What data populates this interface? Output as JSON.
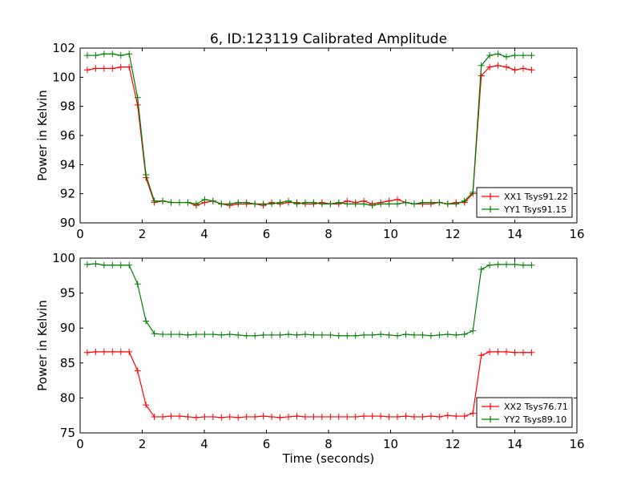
{
  "chart_data": [
    {
      "type": "line",
      "title": "6, ID:123119 Calibrated Amplitude",
      "xlabel": "",
      "ylabel": "Power in Kelvin",
      "xlim": [
        0,
        16
      ],
      "ylim": [
        90,
        102
      ],
      "xticks": [
        "0",
        "2",
        "4",
        "6",
        "8",
        "10",
        "12",
        "14",
        "16"
      ],
      "yticks": [
        "90",
        "92",
        "94",
        "96",
        "98",
        "100",
        "102"
      ],
      "legend_position": "bottom-right",
      "x_start": 0.23,
      "x_step": 0.27,
      "series": [
        {
          "name": "XX1 Tsys91.22",
          "color": "#ff0000",
          "values": [
            100.5,
            100.6,
            100.6,
            100.6,
            100.7,
            100.7,
            98.1,
            93.1,
            91.4,
            91.5,
            91.4,
            91.4,
            91.4,
            91.2,
            91.4,
            91.5,
            91.3,
            91.2,
            91.3,
            91.3,
            91.3,
            91.2,
            91.4,
            91.3,
            91.4,
            91.4,
            91.3,
            91.3,
            91.4,
            91.3,
            91.3,
            91.5,
            91.4,
            91.5,
            91.3,
            91.4,
            91.5,
            91.6,
            91.4,
            91.3,
            91.3,
            91.3,
            91.4,
            91.3,
            91.4,
            91.4,
            92.0,
            100.1,
            100.7,
            100.8,
            100.7,
            100.5,
            100.6,
            100.5
          ]
        },
        {
          "name": "YY1 Tsys91.15",
          "color": "#008000",
          "values": [
            101.5,
            101.5,
            101.6,
            101.6,
            101.5,
            101.6,
            98.6,
            93.3,
            91.5,
            91.5,
            91.4,
            91.4,
            91.4,
            91.3,
            91.6,
            91.5,
            91.3,
            91.3,
            91.4,
            91.4,
            91.3,
            91.3,
            91.3,
            91.4,
            91.5,
            91.3,
            91.4,
            91.4,
            91.3,
            91.3,
            91.4,
            91.3,
            91.3,
            91.3,
            91.2,
            91.3,
            91.3,
            91.3,
            91.4,
            91.3,
            91.4,
            91.4,
            91.4,
            91.3,
            91.3,
            91.5,
            92.1,
            100.8,
            101.5,
            101.6,
            101.4,
            101.5,
            101.5,
            101.5
          ]
        }
      ]
    },
    {
      "type": "line",
      "title": "",
      "xlabel": "Time (seconds)",
      "ylabel": "Power in Kelvin",
      "xlim": [
        0,
        16
      ],
      "ylim": [
        75,
        100
      ],
      "xticks": [
        "0",
        "2",
        "4",
        "6",
        "8",
        "10",
        "12",
        "14",
        "16"
      ],
      "yticks": [
        "75",
        "80",
        "85",
        "90",
        "95",
        "100"
      ],
      "legend_position": "bottom-right",
      "x_start": 0.23,
      "x_step": 0.27,
      "series": [
        {
          "name": "XX2 Tsys76.71",
          "color": "#ff0000",
          "values": [
            86.5,
            86.6,
            86.6,
            86.6,
            86.6,
            86.6,
            83.9,
            79.0,
            77.3,
            77.3,
            77.4,
            77.4,
            77.3,
            77.2,
            77.3,
            77.3,
            77.2,
            77.3,
            77.2,
            77.3,
            77.3,
            77.4,
            77.3,
            77.2,
            77.3,
            77.4,
            77.3,
            77.3,
            77.3,
            77.3,
            77.3,
            77.3,
            77.3,
            77.4,
            77.4,
            77.4,
            77.3,
            77.3,
            77.4,
            77.3,
            77.3,
            77.4,
            77.3,
            77.5,
            77.4,
            77.4,
            77.8,
            86.1,
            86.6,
            86.6,
            86.6,
            86.5,
            86.5,
            86.5
          ]
        },
        {
          "name": "YY2 Tsys89.10",
          "color": "#008000",
          "values": [
            99.1,
            99.2,
            99.0,
            99.0,
            99.0,
            99.0,
            96.3,
            91.0,
            89.2,
            89.1,
            89.1,
            89.1,
            89.0,
            89.1,
            89.1,
            89.1,
            89.0,
            89.1,
            89.0,
            88.9,
            88.9,
            89.0,
            89.0,
            89.0,
            89.1,
            89.0,
            89.1,
            89.0,
            89.0,
            89.0,
            88.9,
            88.9,
            88.9,
            89.0,
            89.0,
            89.1,
            89.0,
            88.9,
            89.1,
            89.0,
            89.0,
            88.9,
            89.0,
            89.1,
            89.0,
            89.1,
            89.6,
            98.4,
            99.0,
            99.1,
            99.1,
            99.1,
            99.0,
            99.0
          ]
        }
      ]
    }
  ]
}
